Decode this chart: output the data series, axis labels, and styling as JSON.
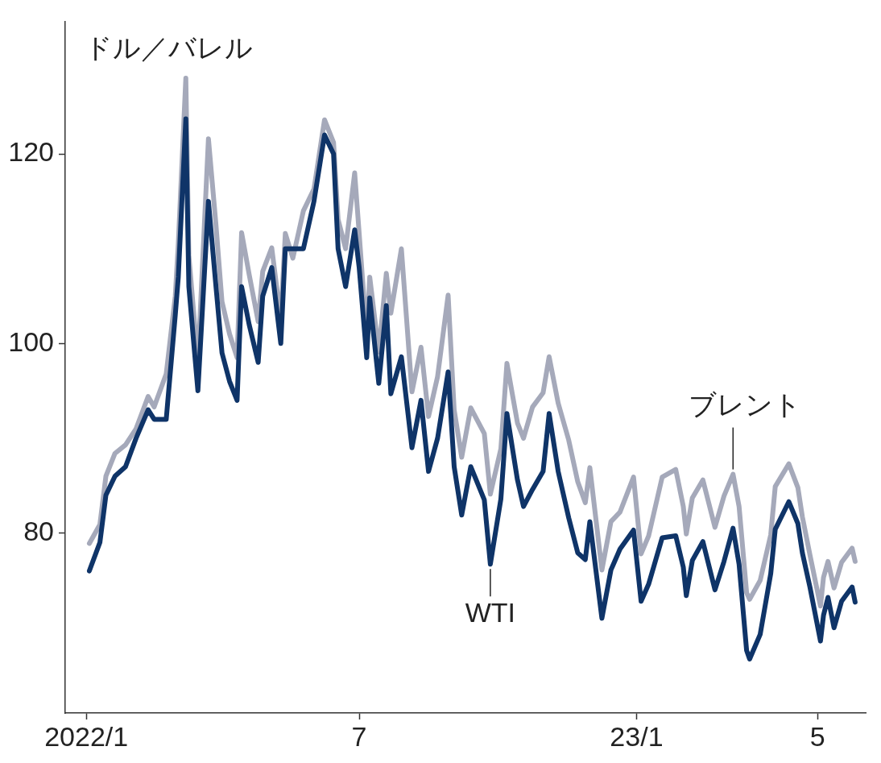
{
  "chart_data": {
    "type": "line",
    "ylabel": "ドル／バレル",
    "x": [
      "2022-01-03",
      "2022-01-10",
      "2022-01-14",
      "2022-01-20",
      "2022-01-27",
      "2022-02-03",
      "2022-02-11",
      "2022-02-15",
      "2022-02-23",
      "2022-03-01",
      "2022-03-03",
      "2022-03-08",
      "2022-03-10",
      "2022-03-16",
      "2022-03-23",
      "2022-03-28",
      "2022-04-01",
      "2022-04-06",
      "2022-04-11",
      "2022-04-14",
      "2022-04-19",
      "2022-04-25",
      "2022-04-28",
      "2022-05-04",
      "2022-05-10",
      "2022-05-13",
      "2022-05-18",
      "2022-05-25",
      "2022-06-01",
      "2022-06-08",
      "2022-06-14",
      "2022-06-17",
      "2022-06-22",
      "2022-06-28",
      "2022-07-01",
      "2022-07-06",
      "2022-07-08",
      "2022-07-14",
      "2022-07-19",
      "2022-07-22",
      "2022-07-29",
      "2022-08-05",
      "2022-08-11",
      "2022-08-16",
      "2022-08-22",
      "2022-08-29",
      "2022-09-02",
      "2022-09-07",
      "2022-09-13",
      "2022-09-22",
      "2022-09-26",
      "2022-10-03",
      "2022-10-07",
      "2022-10-14",
      "2022-10-18",
      "2022-10-24",
      "2022-10-31",
      "2022-11-04",
      "2022-11-10",
      "2022-11-17",
      "2022-11-23",
      "2022-11-28",
      "2022-12-01",
      "2022-12-09",
      "2022-12-15",
      "2022-12-21",
      "2022-12-30",
      "2023-01-04",
      "2023-01-09",
      "2023-01-18",
      "2023-01-27",
      "2023-02-01",
      "2023-02-03",
      "2023-02-07",
      "2023-02-14",
      "2023-02-22",
      "2023-02-28",
      "2023-03-06",
      "2023-03-10",
      "2023-03-15",
      "2023-03-17",
      "2023-03-24",
      "2023-03-31",
      "2023-04-03",
      "2023-04-12",
      "2023-04-18",
      "2023-04-21",
      "2023-04-26",
      "2023-05-03",
      "2023-05-05",
      "2023-05-08",
      "2023-05-12",
      "2023-05-17",
      "2023-05-24",
      "2023-05-26"
    ],
    "series": [
      {
        "color": "#0f3468",
        "values": [
          76,
          79,
          84,
          86,
          87,
          90,
          93,
          92,
          92,
          103,
          107,
          123.7,
          106,
          95,
          115,
          106,
          99,
          96,
          94,
          106,
          102,
          98,
          105,
          108,
          100,
          110,
          110,
          110,
          115,
          122,
          120,
          110,
          106,
          112,
          108,
          98.5,
          104.8,
          95.8,
          104,
          94.7,
          98.6,
          89,
          94,
          86.5,
          90,
          97,
          87,
          81.9,
          87,
          83.5,
          76.7,
          83.6,
          92.6,
          85.6,
          82.8,
          84.6,
          86.5,
          92.6,
          86.5,
          81.6,
          77.9,
          77.2,
          81.2,
          71,
          76.1,
          78.3,
          80.3,
          72.8,
          74.6,
          79.5,
          79.7,
          76.4,
          73.4,
          77.1,
          79.1,
          74,
          77,
          80.5,
          76.7,
          67.6,
          66.7,
          69.3,
          75.7,
          80.4,
          83.3,
          81,
          77.9,
          74.3,
          68.6,
          71.3,
          73.2,
          70,
          72.8,
          74.3,
          72.7
        ]
      },
      {
        "color": "#a5a9ba",
        "values": [
          78.9,
          80.9,
          86,
          88.4,
          89.3,
          91,
          94.4,
          93.3,
          96.8,
          105,
          110.5,
          128,
          109.3,
          98,
          121.6,
          112.5,
          104.4,
          101,
          98.5,
          111.7,
          107.3,
          102.3,
          107.6,
          110.1,
          102.5,
          111.6,
          109,
          114,
          116.3,
          123.6,
          121.2,
          113.1,
          110,
          118,
          111.6,
          100.7,
          107,
          99.1,
          107.4,
          103.2,
          110,
          94.9,
          99.6,
          92.3,
          96.5,
          105.1,
          93,
          88,
          93.2,
          90.5,
          84.1,
          88.9,
          97.9,
          91.6,
          90,
          93.3,
          94.8,
          98.6,
          93.7,
          89.8,
          85.4,
          83.2,
          86.9,
          76.1,
          81.2,
          82.2,
          85.9,
          77.8,
          79.7,
          85.9,
          86.7,
          82.8,
          79.9,
          83.7,
          85.6,
          80.6,
          83.9,
          86.2,
          82.8,
          73.7,
          73,
          75,
          79.8,
          84.9,
          87.3,
          84.8,
          81.7,
          77.7,
          72.3,
          75.3,
          77,
          74.2,
          76.9,
          78.4,
          77
        ]
      }
    ],
    "annotations": [
      {
        "text": "WTI",
        "x": "2022-09-26",
        "y": 76.7
      },
      {
        "text": "ブレント",
        "x": "2023-03-06",
        "y": 86.2
      }
    ],
    "xlim": [
      "2021-12-18",
      "2023-06-02"
    ],
    "xticks": [
      {
        "value": "2022-01-01",
        "label": "2022/1"
      },
      {
        "value": "2022-07-01",
        "label": "7"
      },
      {
        "value": "2023-01-01",
        "label": "23/1"
      },
      {
        "value": "2023-05-01",
        "label": "5"
      }
    ],
    "ylim": [
      61,
      134
    ],
    "yticks": [
      80,
      100,
      120
    ],
    "grid": false,
    "legend": false,
    "marker": "none",
    "line_style": "solid"
  }
}
